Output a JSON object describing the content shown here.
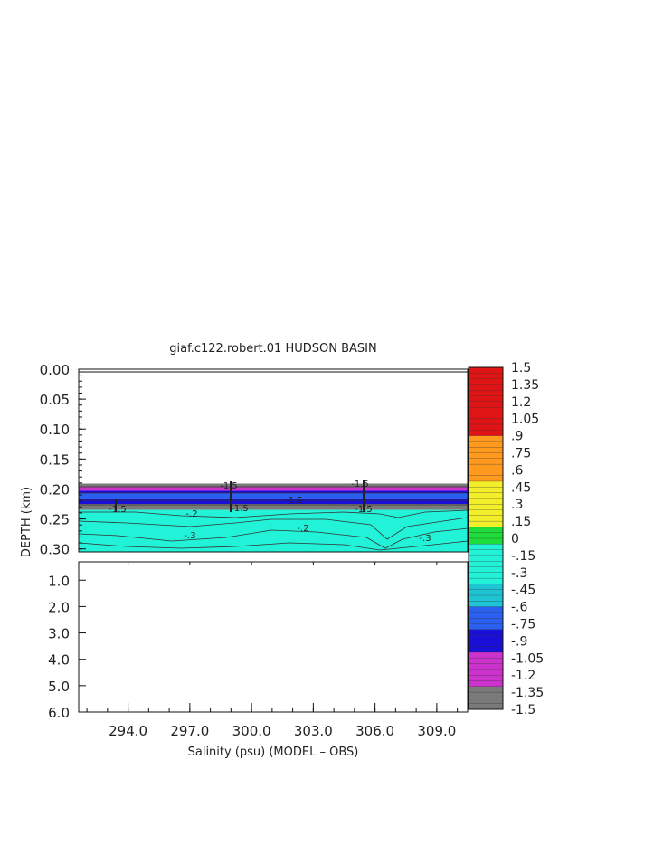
{
  "chart_data": {
    "type": "heatmap",
    "title": "giaf.c122.robert.01 HUDSON BASIN",
    "xlabel": "Salinity (psu) (MODEL – OBS)",
    "ylabel": "DEPTH (km)",
    "xlim": [
      291.6,
      310.5
    ],
    "x_ticks": [
      "294.0",
      "297.0",
      "300.0",
      "303.0",
      "306.0",
      "309.0"
    ],
    "upper_panel": {
      "ylim": [
        0.0,
        0.305
      ],
      "y_ticks": [
        "0.00",
        "0.05",
        "0.10",
        "0.15",
        "0.20",
        "0.25",
        "0.30"
      ],
      "bands": [
        {
          "from": 0.191,
          "to": 0.197,
          "value": -1.5
        },
        {
          "from": 0.197,
          "to": 0.203,
          "value": -1.05
        },
        {
          "from": 0.203,
          "to": 0.207,
          "value": -0.9
        },
        {
          "from": 0.207,
          "to": 0.216,
          "value": -0.75
        },
        {
          "from": 0.216,
          "to": 0.225,
          "value": -0.9
        },
        {
          "from": 0.225,
          "to": 0.235,
          "value": -1.5
        },
        {
          "from": 0.235,
          "to": 0.305,
          "value": -0.3
        }
      ],
      "contour_labels": [
        "-1.5",
        "-1.5",
        "-1.5",
        "-1.5",
        "-1.5",
        "-1.5",
        "-.2",
        "-.2",
        "-.3",
        "-.3"
      ]
    },
    "lower_panel": {
      "ylim": [
        0.305,
        6.0
      ],
      "y_ticks": [
        "1.0",
        "2.0",
        "3.0",
        "4.0",
        "5.0",
        "6.0"
      ]
    },
    "colorbar": {
      "min": -1.5,
      "max": 1.5,
      "step": 0.05,
      "tick_labels": [
        "1.5",
        "1.35",
        "1.2",
        "1.05",
        ".9",
        ".75",
        ".6",
        ".45",
        ".3",
        ".15",
        "0",
        "-.15",
        "-.3",
        "-.45",
        "-.6",
        "-.75",
        "-.9",
        "-1.05",
        "-1.2",
        "-1.35",
        "-1.5"
      ]
    },
    "grid": false
  }
}
